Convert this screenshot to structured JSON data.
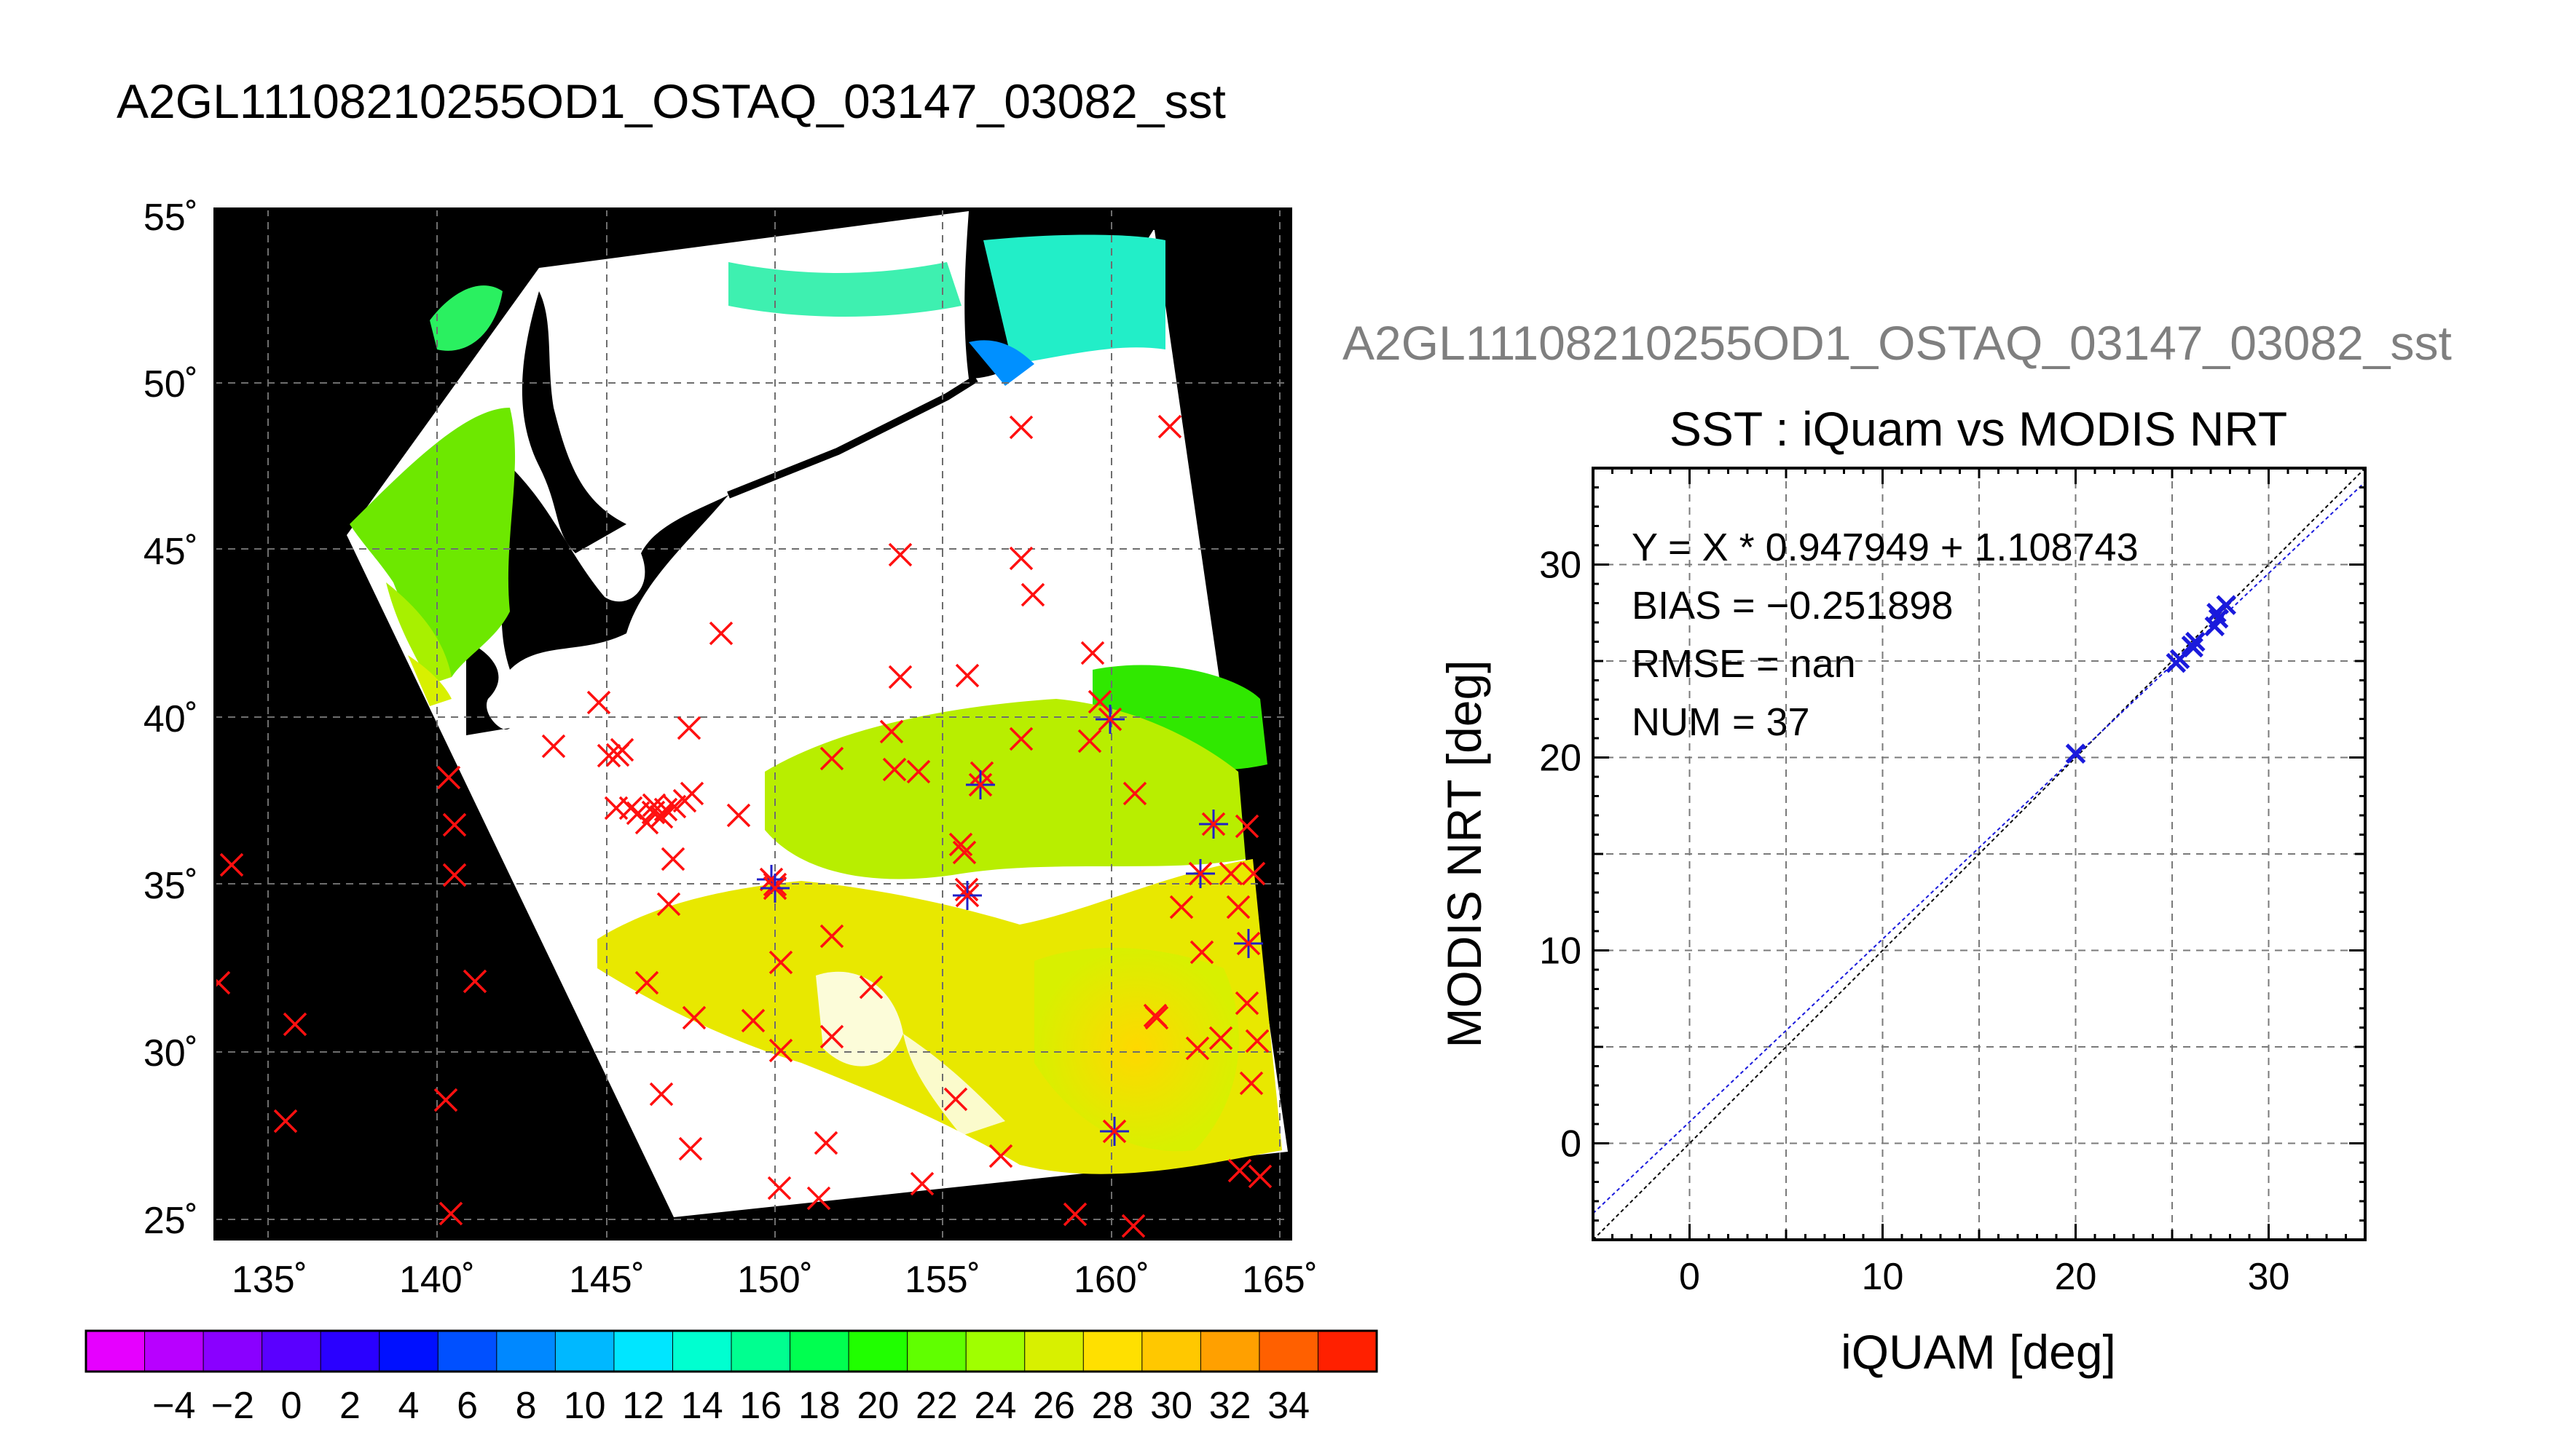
{
  "title_main": "A2GL11108210255OD1_OSTAQ_03147_03082_sst",
  "title_secondary": "A2GL11108210255OD1_OSTAQ_03147_03082_sst",
  "map": {
    "lat_ticks": [
      "55˚",
      "50˚",
      "45˚",
      "40˚",
      "35˚",
      "30˚",
      "25˚"
    ],
    "lon_ticks": [
      "135˚",
      "140˚",
      "145˚",
      "150˚",
      "155˚",
      "160˚",
      "165˚"
    ]
  },
  "colorbar": {
    "ticks": [
      "−4",
      "−2",
      "0",
      "2",
      "4",
      "6",
      "8",
      "10",
      "12",
      "14",
      "16",
      "18",
      "20",
      "22",
      "24",
      "26",
      "28",
      "30",
      "32",
      "34"
    ],
    "colors": [
      "#e600ff",
      "#b800ff",
      "#8a00ff",
      "#5a00ff",
      "#2a00ff",
      "#0010ff",
      "#0050ff",
      "#0088ff",
      "#00b8ff",
      "#00e6ff",
      "#00ffd0",
      "#00ff90",
      "#00ff50",
      "#20ff00",
      "#60ff00",
      "#a0ff00",
      "#d8f000",
      "#ffe000",
      "#ffc800",
      "#ffa000",
      "#ff6000",
      "#ff2000"
    ]
  },
  "chart_data": {
    "type": "scatter",
    "title": "SST : iQuam vs MODIS NRT",
    "xlabel": "iQUAM [deg]",
    "ylabel": "MODIS NRT [deg]",
    "xlim": [
      -5,
      35
    ],
    "ylim": [
      -5,
      35
    ],
    "x_ticks": [
      "0",
      "10",
      "20",
      "30"
    ],
    "y_ticks": [
      "0",
      "10",
      "20",
      "30"
    ],
    "grid": true,
    "annotations": [
      "Y = X * 0.947949 + 1.108743",
      "BIAS = −0.251898",
      "RMSE = nan",
      "NUM = 37"
    ],
    "fit": {
      "slope": 0.947949,
      "intercept": 1.108743
    },
    "points": [
      [
        20.0,
        20.2
      ],
      [
        25.2,
        24.9
      ],
      [
        25.4,
        25.1
      ],
      [
        26.0,
        25.8
      ],
      [
        26.2,
        26.0
      ],
      [
        27.2,
        26.8
      ],
      [
        27.4,
        27.2
      ],
      [
        27.3,
        27.5
      ],
      [
        27.8,
        27.9
      ],
      [
        26.1,
        25.7
      ]
    ]
  }
}
